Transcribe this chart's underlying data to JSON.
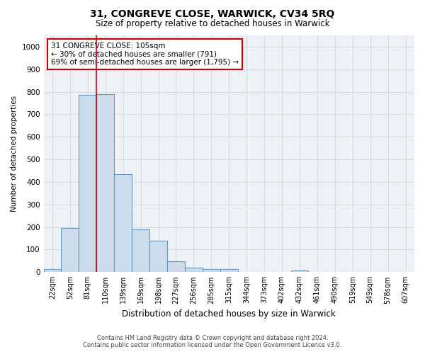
{
  "title": "31, CONGREVE CLOSE, WARWICK, CV34 5RQ",
  "subtitle": "Size of property relative to detached houses in Warwick",
  "xlabel": "Distribution of detached houses by size in Warwick",
  "ylabel": "Number of detached properties",
  "footer_line1": "Contains HM Land Registry data © Crown copyright and database right 2024.",
  "footer_line2": "Contains public sector information licensed under the Open Government Licence v3.0.",
  "bar_color": "#ccdcec",
  "bar_edge_color": "#6699bb",
  "annotation_line1": "31 CONGREVE CLOSE: 105sqm",
  "annotation_line2": "← 30% of detached houses are smaller (791)",
  "annotation_line3": "69% of semi-detached houses are larger (1,795) →",
  "annotation_box_edge": "#cc0000",
  "vline_color": "#cc0000",
  "vline_position": 2.5,
  "categories": [
    "22sqm",
    "52sqm",
    "81sqm",
    "110sqm",
    "139sqm",
    "169sqm",
    "198sqm",
    "227sqm",
    "256sqm",
    "285sqm",
    "315sqm",
    "344sqm",
    "373sqm",
    "402sqm",
    "432sqm",
    "461sqm",
    "490sqm",
    "519sqm",
    "549sqm",
    "578sqm",
    "607sqm"
  ],
  "values": [
    15,
    195,
    785,
    790,
    435,
    190,
    140,
    48,
    20,
    12,
    12,
    0,
    0,
    0,
    8,
    0,
    0,
    0,
    0,
    0,
    0
  ],
  "ylim": [
    0,
    1050
  ],
  "yticks": [
    0,
    100,
    200,
    300,
    400,
    500,
    600,
    700,
    800,
    900,
    1000
  ],
  "grid_color": "#d0d8e0",
  "background_color": "#eef2f7"
}
